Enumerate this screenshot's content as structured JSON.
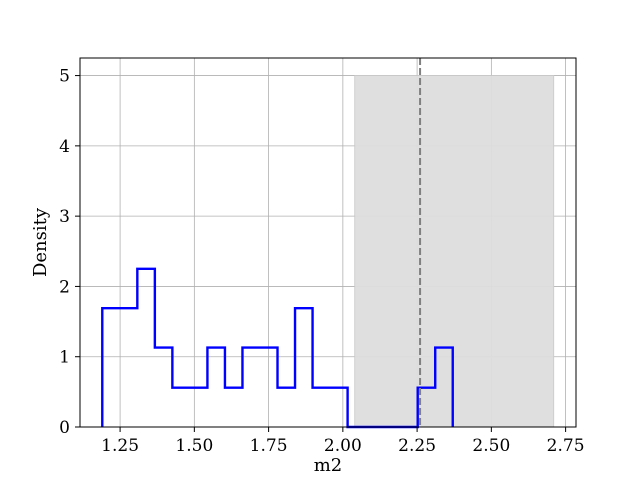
{
  "chart_data": {
    "type": "histogram",
    "xlabel": "m2",
    "ylabel": "Density",
    "xlim": [
      1.115,
      2.785
    ],
    "ylim": [
      0,
      5.25
    ],
    "grid": true,
    "x_ticks": [
      1.25,
      1.5,
      1.75,
      2.0,
      2.25,
      2.5,
      2.75
    ],
    "x_tick_labels": [
      "1.25",
      "1.50",
      "1.75",
      "2.00",
      "2.25",
      "2.50",
      "2.75"
    ],
    "y_ticks": [
      0,
      1,
      2,
      3,
      4,
      5
    ],
    "y_tick_labels": [
      "0",
      "1",
      "2",
      "3",
      "4",
      "5"
    ],
    "bin_edges": [
      1.19,
      1.249,
      1.308,
      1.367,
      1.426,
      1.485,
      1.544,
      1.603,
      1.662,
      1.721,
      1.78,
      1.839,
      1.898,
      1.957,
      2.016,
      2.075,
      2.134,
      2.193,
      2.252,
      2.311,
      2.37
    ],
    "densities": [
      1.69,
      1.69,
      2.25,
      1.13,
      0.56,
      0.56,
      1.13,
      0.56,
      1.13,
      1.13,
      0.56,
      1.69,
      0.56,
      0.56,
      0.0,
      0.0,
      0.0,
      0.0,
      0.56,
      1.13
    ],
    "shaded_region": {
      "x_start": 2.04,
      "x_end": 2.71,
      "y_top": 5.0,
      "color": "#dddddd"
    },
    "vertical_line": {
      "x": 2.26,
      "style": "dashed",
      "color": "#808080"
    },
    "series_color": "#0000ff"
  }
}
